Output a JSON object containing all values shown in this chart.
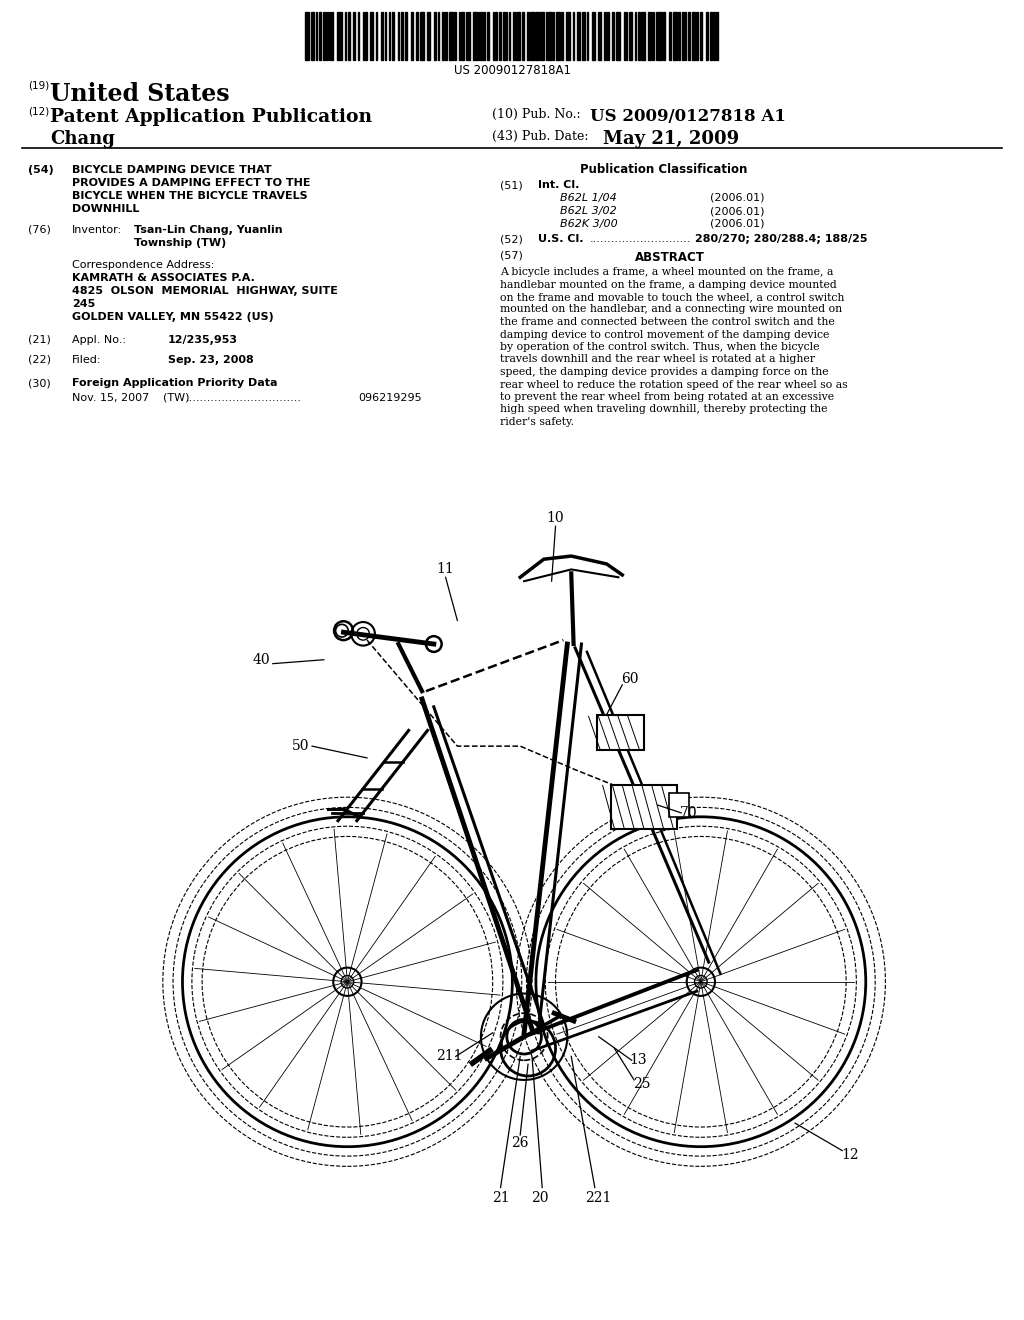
{
  "background_color": "#ffffff",
  "barcode_text": "US 20090127818A1",
  "header_19": "(19)",
  "header_country": "United States",
  "header_12": "(12)",
  "header_type": "Patent Application Publication",
  "header_10": "(10) Pub. No.:",
  "header_pub_no": "US 2009/0127818 A1",
  "header_43": "(43) Pub. Date:",
  "header_date": "May 21, 2009",
  "header_name": "Chang",
  "section54_label": "(54)  ",
  "section54_title_line1": "BICYCLE DAMPING DEVICE THAT",
  "section54_title_line2": "PROVIDES A DAMPING EFFECT TO THE",
  "section54_title_line3": "BICYCLE WHEN THE BICYCLE TRAVELS",
  "section54_title_line4": "DOWNHILL",
  "section76_label": "(76)  ",
  "section76_title": "Inventor:",
  "section76_value1": "Tsan-Lin Chang, Yuanlin",
  "section76_value2": "Township (TW)",
  "corr_label": "Correspondence Address:",
  "corr_line1": "KAMRATH & ASSOCIATES P.A.",
  "corr_line2": "4825  OLSON  MEMORIAL  HIGHWAY, SUITE",
  "corr_line3": "245",
  "corr_line4": "GOLDEN VALLEY, MN 55422 (US)",
  "section21_label": "(21)",
  "section21_title": "Appl. No.:",
  "section21_value": "12/235,953",
  "section22_label": "(22)",
  "section22_title": "Filed:",
  "section22_value": "Sep. 23, 2008",
  "section30_label": "(30)",
  "section30_title": "Foreign Application Priority Data",
  "section30_date": "Nov. 15, 2007",
  "section30_country": "(TW)",
  "section30_dots": "................................",
  "section30_number": "096219295",
  "pub_class_title": "Publication Classification",
  "section51_label": "(51)",
  "section51_title": "Int. Cl.",
  "section51_class1": "B62L 1/04",
  "section51_year1": "(2006.01)",
  "section51_class2": "B62L 3/02",
  "section51_year2": "(2006.01)",
  "section51_class3": "B62K 3/00",
  "section51_year3": "(2006.01)",
  "section52_label": "(52)",
  "section52_title": "U.S. Cl.",
  "section52_dots": "............................",
  "section52_value": "280/270; 280/288.4; 188/25",
  "section57_label": "(57)",
  "section57_title": "ABSTRACT",
  "abstract_line1": "A bicycle includes a frame, a wheel mounted on the frame, a",
  "abstract_line2": "handlebar mounted on the frame, a damping device mounted",
  "abstract_line3": "on the frame and movable to touch the wheel, a control switch",
  "abstract_line4": "mounted on the handlebar, and a connecting wire mounted on",
  "abstract_line5": "the frame and connected between the control switch and the",
  "abstract_line6": "damping device to control movement of the damping device",
  "abstract_line7": "by operation of the control switch. Thus, when the bicycle",
  "abstract_line8": "travels downhill and the rear wheel is rotated at a higher",
  "abstract_line9": "speed, the damping device provides a damping force on the",
  "abstract_line10": "rear wheel to reduce the rotation speed of the rear wheel so as",
  "abstract_line11": "to prevent the rear wheel from being rotated at an excessive",
  "abstract_line12": "high speed when traveling downhill, thereby protecting the",
  "abstract_line13": "rider's safety."
}
